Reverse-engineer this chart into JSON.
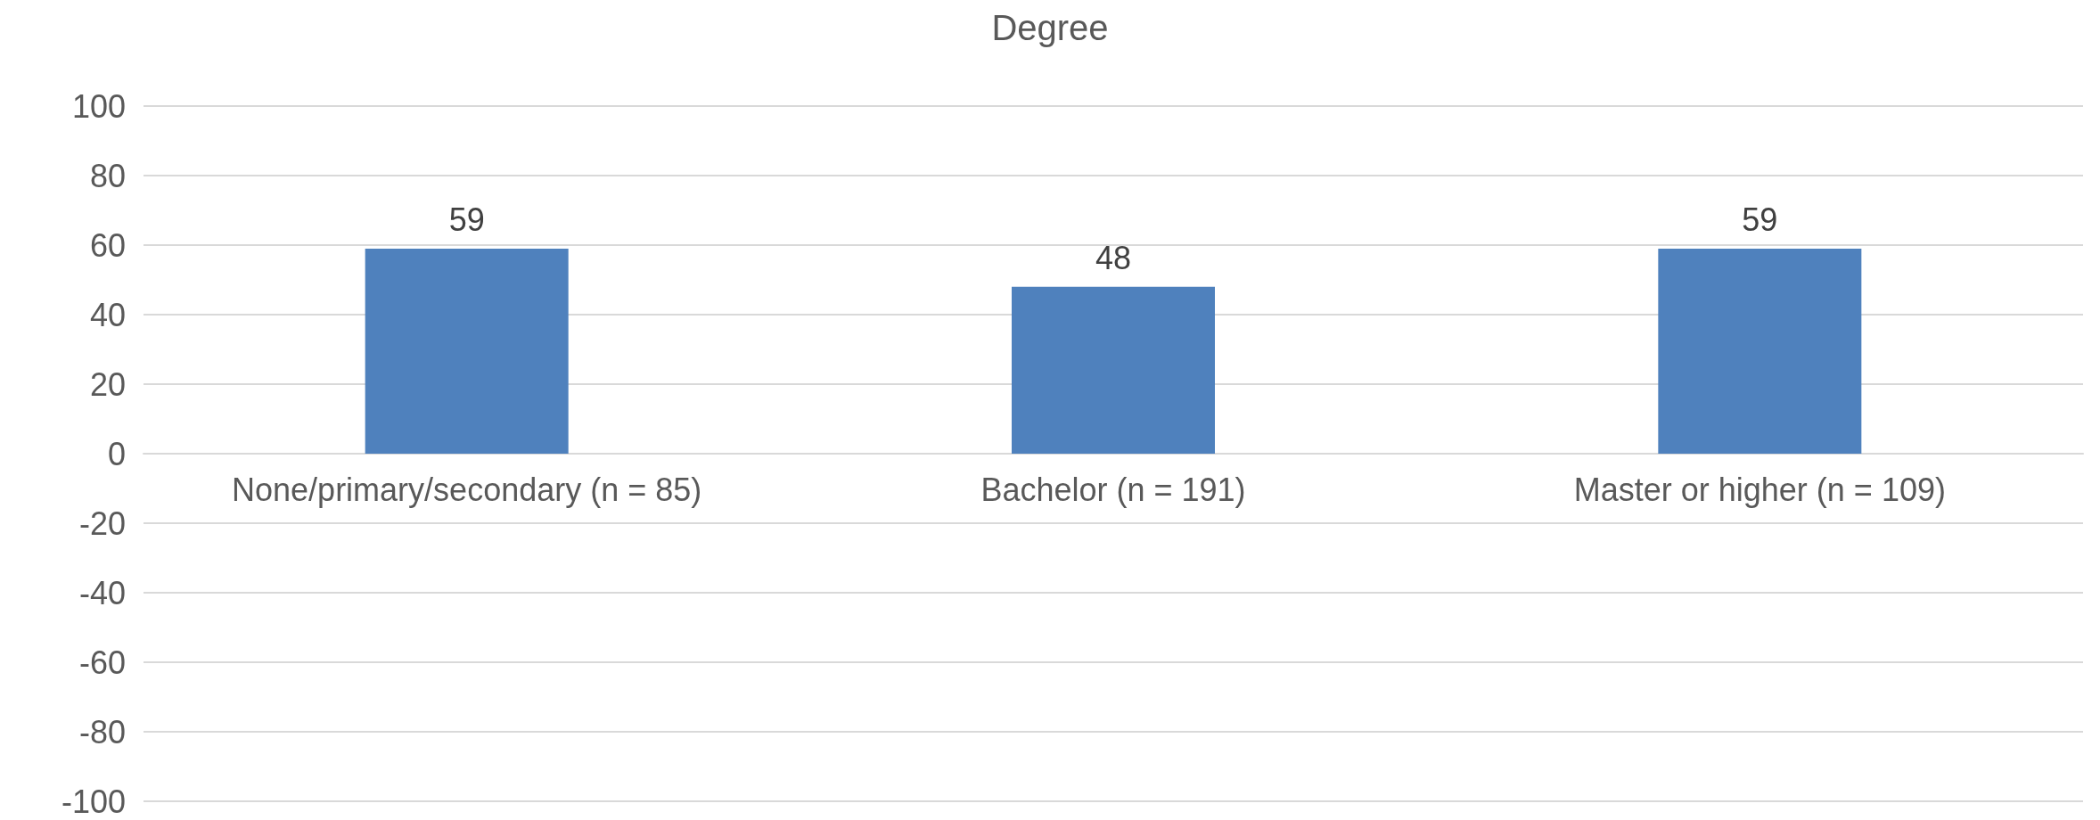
{
  "chart_data": {
    "type": "bar",
    "title": "Degree",
    "categories": [
      "None/primary/secondary (n = 85)",
      "Bachelor (n = 191)",
      "Master or higher (n = 109)"
    ],
    "values": [
      59,
      48,
      59
    ],
    "color": "#4f81bd",
    "ylim": [
      -100,
      100
    ],
    "yticks": [
      -100,
      -80,
      -60,
      -40,
      -20,
      0,
      20,
      40,
      60,
      80,
      100
    ],
    "grid": "y",
    "data_labels": true
  }
}
